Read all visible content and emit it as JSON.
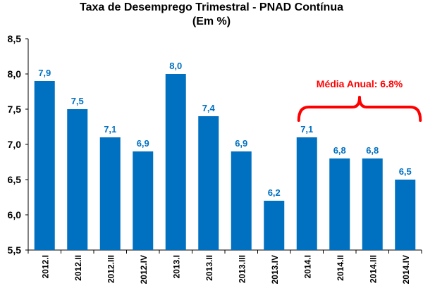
{
  "chart_data": {
    "type": "bar",
    "title": "Taxa de Desemprego Trimestral - PNAD Contínua",
    "subtitle": "(Em %)",
    "categories": [
      "2012.I",
      "2012.II",
      "2012.III",
      "2012.IV",
      "2013.I",
      "2013.II",
      "2013.III",
      "2013.IV",
      "2014.I",
      "2014.II",
      "2014.III",
      "2014.IV"
    ],
    "values": [
      7.9,
      7.5,
      7.1,
      6.9,
      8.0,
      7.4,
      6.9,
      6.2,
      7.1,
      6.8,
      6.8,
      6.5
    ],
    "value_labels": [
      "7,9",
      "7,5",
      "7,1",
      "6,9",
      "8,0",
      "7,4",
      "6,9",
      "6,2",
      "7,1",
      "6,8",
      "6,8",
      "6,5"
    ],
    "y_ticks": [
      5.5,
      6.0,
      6.5,
      7.0,
      7.5,
      8.0,
      8.5
    ],
    "y_tick_labels": [
      "5,5",
      "6,0",
      "6,5",
      "7,0",
      "7,5",
      "8,0",
      "8,5"
    ],
    "ylim": [
      5.5,
      8.5
    ],
    "xlabel": "",
    "ylabel": "",
    "grid": false,
    "legend": "none",
    "annotation": {
      "text": "Média Anual: 6.8%",
      "category_start": "2014.I",
      "category_end": "2014.IV"
    },
    "colors": {
      "bar": "#0070C0",
      "value_label": "#0070C0",
      "annotation": "#FF0000",
      "axis": "#000000"
    }
  }
}
